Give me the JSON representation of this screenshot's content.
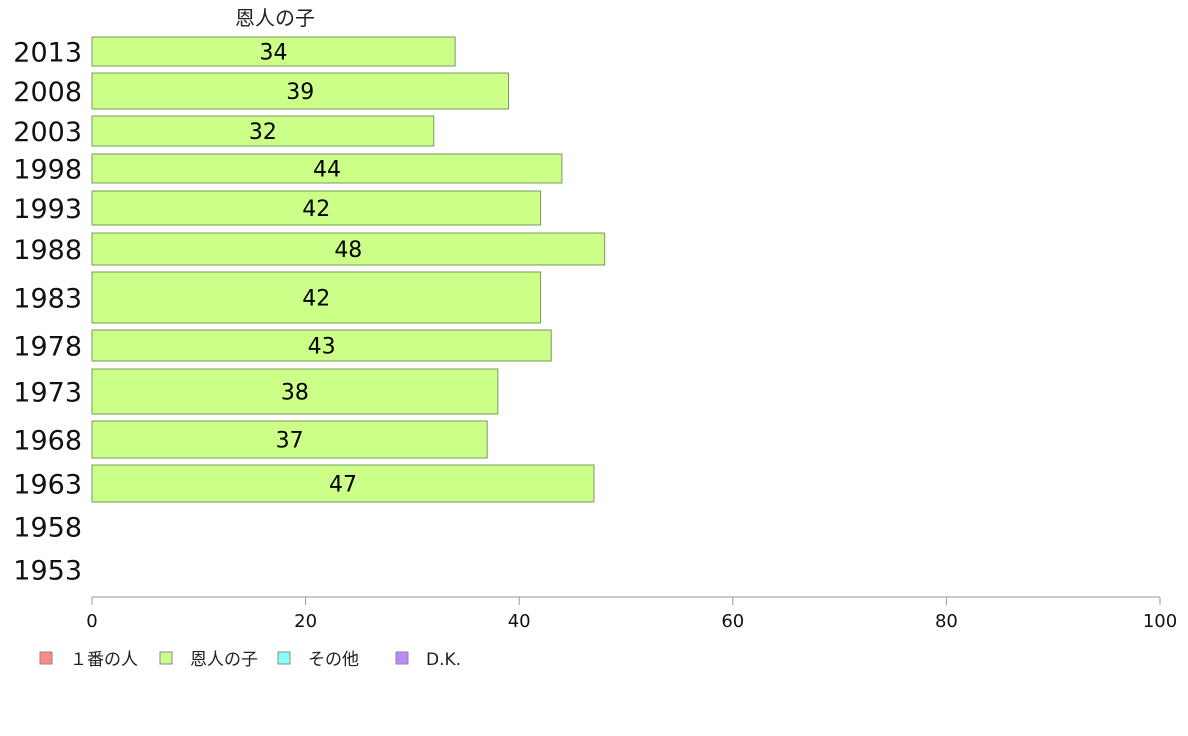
{
  "chart_data": {
    "type": "bar",
    "orientation": "horizontal",
    "series_title": "恩人の子",
    "categories": [
      "2013",
      "2008",
      "2003",
      "1998",
      "1993",
      "1988",
      "1983",
      "1978",
      "1973",
      "1968",
      "1963",
      "1958",
      "1953"
    ],
    "series": [
      {
        "name": "恩人の子",
        "color": "#ccff88",
        "values": [
          34,
          39,
          32,
          44,
          42,
          48,
          42,
          43,
          38,
          37,
          47,
          null,
          null
        ]
      }
    ],
    "xlim": [
      0,
      100
    ],
    "x_ticks": [
      "0",
      "20",
      "40",
      "60",
      "80",
      "100"
    ],
    "legend_position": "bottom-left",
    "legend": [
      {
        "label": "１番の人",
        "color": "#ff8888"
      },
      {
        "label": "恩人の子",
        "color": "#ccff88"
      },
      {
        "label": "その他",
        "color": "#88ffff"
      },
      {
        "label": "D.K.",
        "color": "#bb88ff"
      }
    ]
  }
}
